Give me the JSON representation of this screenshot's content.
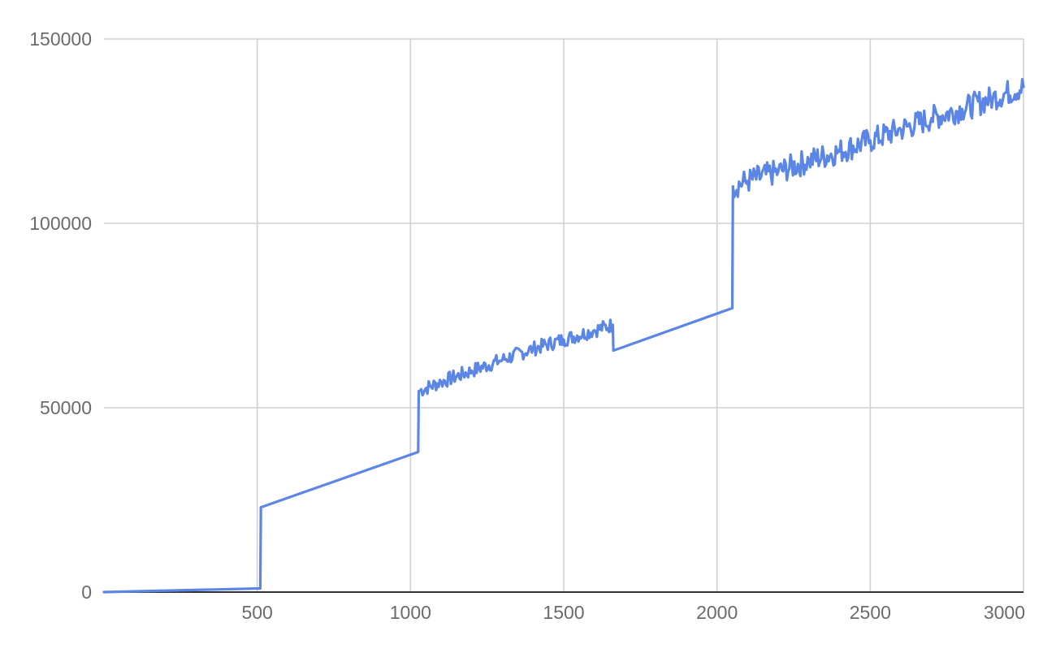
{
  "chart_data": {
    "type": "line",
    "title": "",
    "xlabel": "",
    "ylabel": "",
    "xlim": [
      0,
      3000
    ],
    "ylim": [
      0,
      150000
    ],
    "x_ticks": [
      500,
      1000,
      1500,
      2000,
      2500,
      3000
    ],
    "x_tick_labels": [
      "500",
      "1000",
      "1500",
      "2000",
      "2500",
      "3000"
    ],
    "y_ticks": [
      0,
      50000,
      100000,
      150000
    ],
    "y_tick_labels": [
      "0",
      "50000",
      "100000",
      "150000"
    ],
    "grid": true,
    "legend": "none",
    "series": [
      {
        "color": "#5b86e5",
        "points": [
          [
            0,
            0
          ],
          [
            510,
            1000
          ],
          [
            512,
            23000
          ],
          [
            1025,
            38000
          ],
          [
            1027,
            54500
          ],
          [
            1100,
            57000
          ],
          [
            1200,
            60000
          ],
          [
            1300,
            63000
          ],
          [
            1400,
            66000
          ],
          [
            1500,
            68500
          ],
          [
            1600,
            71000
          ],
          [
            1660,
            72500
          ],
          [
            1662,
            65500
          ],
          [
            2050,
            77000
          ],
          [
            2052,
            110000
          ],
          [
            2100,
            111500
          ],
          [
            2200,
            114000
          ],
          [
            2300,
            117000
          ],
          [
            2400,
            119500
          ],
          [
            2500,
            122500
          ],
          [
            2600,
            125500
          ],
          [
            2700,
            128500
          ],
          [
            2800,
            131000
          ],
          [
            2900,
            134000
          ],
          [
            3000,
            137000
          ]
        ],
        "noise_segments": [
          {
            "x": [
              1027,
              1660
            ],
            "amplitude": 2000
          },
          {
            "x": [
              2052,
              3000
            ],
            "amplitude": 3500
          }
        ]
      }
    ]
  }
}
